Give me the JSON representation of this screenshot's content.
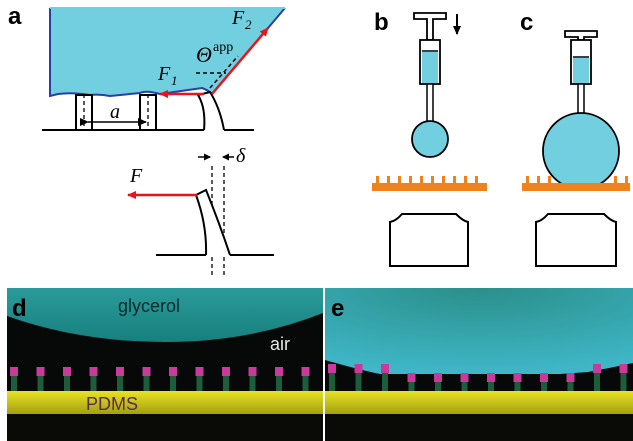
{
  "panel_labels": {
    "a": "a",
    "b": "b",
    "c": "c",
    "d": "d",
    "e": "e"
  },
  "panel_a": {
    "force_top": "F",
    "force_top_sub": "2",
    "force_left": "F",
    "force_left_sub": "1",
    "angle_symbol": "Θ",
    "angle_sup": "app",
    "spacing": "a",
    "deflection_force": "F",
    "deflection": "δ"
  },
  "photo_d": {
    "top_label": "glycerol",
    "right_label": "air",
    "bottom_label": "PDMS"
  },
  "colors": {
    "liquid": "#72cfe0",
    "force_arrow": "#e8141a",
    "substrate": "#f0821e",
    "photo_glycerol": "#1f8e8e",
    "photo_pdms": "#d6d21e",
    "photo_pillar": "#c93a9b"
  }
}
